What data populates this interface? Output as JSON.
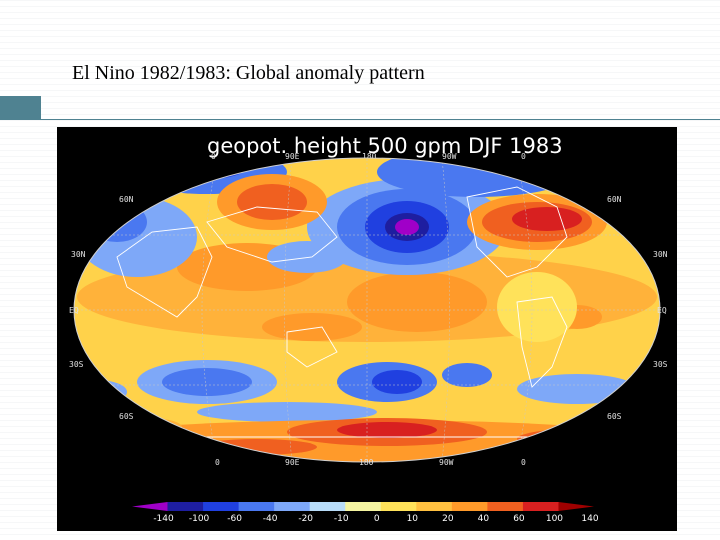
{
  "slide": {
    "title": "El Nino 1982/1983: Global anomaly pattern"
  },
  "map": {
    "title": "geopot. height 500 gpm DJF 1983",
    "lon_labels_top": [
      "0",
      "90E",
      "180",
      "90W",
      "0"
    ],
    "lon_labels_bottom": [
      "0",
      "90E",
      "180",
      "90W",
      "0"
    ],
    "lat_labels_left": [
      "60N",
      "30N",
      "EQ",
      "30S",
      "60S"
    ],
    "lat_labels_right": [
      "60N",
      "30N",
      "EQ",
      "30S",
      "60S"
    ],
    "colorbar": {
      "labels": [
        "-140",
        "-100",
        "-60",
        "-40",
        "-20",
        "-10",
        "0",
        "10",
        "20",
        "40",
        "60",
        "100",
        "140"
      ],
      "colors": [
        "#a000c8",
        "#1e1ea0",
        "#2040e0",
        "#4a78f0",
        "#7ea8f8",
        "#b8dcf8",
        "#f4f4a0",
        "#ffe25a",
        "#ffc040",
        "#ff9a2a",
        "#f06020",
        "#d82020",
        "#a00000"
      ]
    }
  }
}
